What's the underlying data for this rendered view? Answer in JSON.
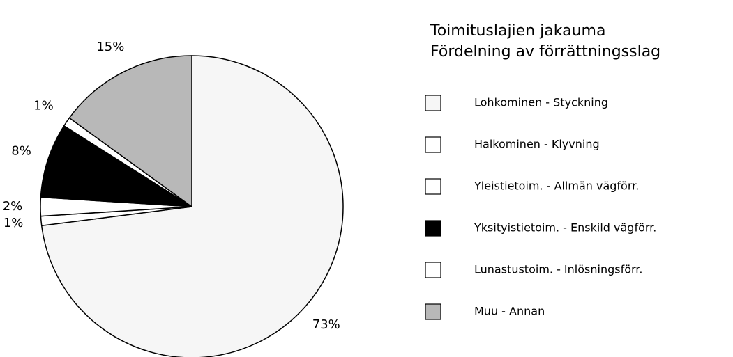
{
  "chart_data": {
    "type": "pie",
    "title": [
      "Toimituslajien jakauma",
      "Fördelning av förrättningsslag"
    ],
    "categories": [
      "Lohkominen - Styckning",
      "Halkominen - Klyvning",
      "Yleistietoim. - Allmän vägförr.",
      "Yksityistietoim. - Enskild vägförr.",
      "Lunastustoim. - Inlösningsförr.",
      "Muu - Annan"
    ],
    "values": [
      73,
      1,
      2,
      8,
      1,
      15
    ],
    "value_labels": [
      "73%",
      "1%",
      "2%",
      "8%",
      "1%",
      "15%"
    ],
    "colors": [
      "#f6f6f6",
      "#ffffff",
      "#ffffff",
      "#000000",
      "#ffffff",
      "#b8b8b8"
    ],
    "legend": "right"
  }
}
